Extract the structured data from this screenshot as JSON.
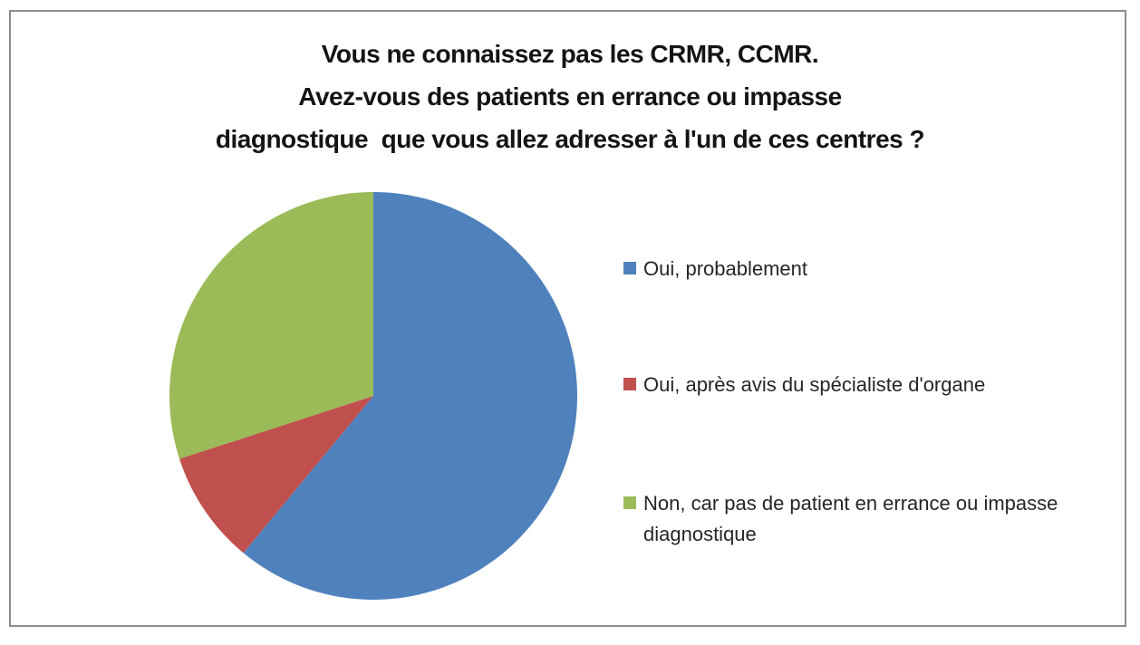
{
  "window": {
    "background_color": "#ffffff",
    "border_color": "#8d8d8d"
  },
  "chart": {
    "title_lines": [
      "Vous ne connaissez pas les CRMR, CCMR.",
      "Avez-vous des patients en errance ou impasse",
      "diagnostique  que vous allez adresser à l'un de ces centres ?"
    ]
  },
  "legend": {
    "position": "right",
    "items": [
      {
        "label": "Oui, probablement",
        "color": "#4f81bd"
      },
      {
        "label": "Oui, après avis du spécialiste d'organe",
        "color": "#c0504d"
      },
      {
        "label": "Non, car pas de patient en errance ou impasse diagnostique",
        "color": "#9bbb59"
      }
    ]
  },
  "chart_data": {
    "type": "pie",
    "title": "Vous ne connaissez pas les CRMR, CCMR. Avez-vous des patients en errance ou impasse diagnostique  que vous allez adresser à l'un de ces centres ?",
    "categories": [
      "Oui, probablement",
      "Oui, après avis du spécialiste d'organe",
      "Non, car pas de patient en errance ou impasse diagnostique"
    ],
    "values_percent": [
      61,
      9,
      30
    ],
    "colors": [
      "#4f81bd",
      "#c0504d",
      "#9bbb59"
    ],
    "start_angle_deg": 0,
    "direction": "clockwise",
    "data_labels": false,
    "legend_position": "right"
  }
}
